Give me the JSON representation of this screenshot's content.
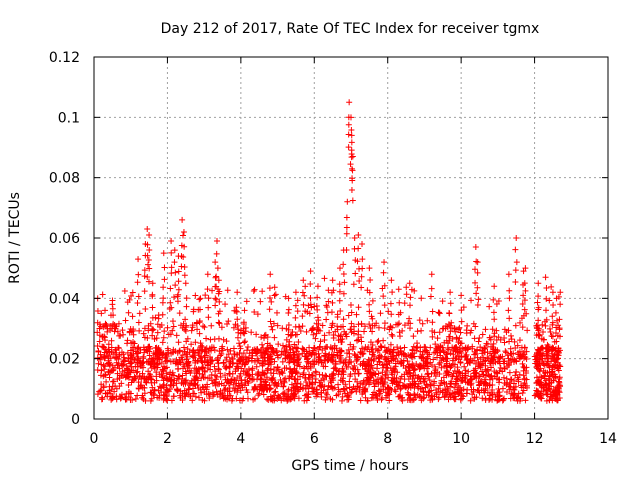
{
  "chart_data": {
    "type": "scatter",
    "title": "Day 212 of 2017, Rate Of TEC Index for receiver tgmx",
    "xlabel": "GPS time / hours",
    "ylabel": "ROTI / TECUs",
    "xlim": [
      0,
      14
    ],
    "ylim": [
      0,
      0.12
    ],
    "x_ticks": [
      0,
      2,
      4,
      6,
      8,
      10,
      12,
      14
    ],
    "x_tick_labels": [
      "0",
      "2",
      "4",
      "6",
      "8",
      "10",
      "12",
      "14"
    ],
    "y_ticks": [
      0,
      0.02,
      0.04,
      0.06,
      0.08,
      0.1,
      0.12
    ],
    "y_tick_labels": [
      "0",
      "0.02",
      "0.04",
      "0.06",
      "0.08",
      "0.1",
      "0.12"
    ],
    "grid": true,
    "marker": "+",
    "color": "#ff0000",
    "series": [
      {
        "name": "ROTI",
        "note": "dense band of points from 0.1 h to 11.8 h and 12.0 h to 12.7 h; baseline ~0.005-0.03 TECU/s with spikes",
        "x": [
          0.1,
          0.15,
          0.2,
          0.3,
          0.5,
          1.05,
          1.2,
          1.4,
          1.45,
          1.5,
          1.6,
          1.9,
          2.1,
          2.2,
          2.3,
          2.4,
          2.45,
          2.5,
          2.9,
          3.1,
          3.3,
          3.35,
          3.4,
          3.9,
          4.1,
          4.8,
          5.3,
          5.5,
          5.7,
          5.9,
          6.1,
          6.5,
          6.7,
          6.8,
          6.9,
          6.95,
          7.0,
          7.02,
          7.05,
          7.1,
          7.2,
          7.3,
          7.5,
          7.9,
          8.1,
          8.3,
          8.6,
          9.2,
          9.7,
          10.0,
          10.4,
          10.45,
          10.9,
          11.3,
          11.5,
          11.7,
          11.75,
          12.1,
          12.3,
          12.5,
          12.6,
          12.7
        ],
        "y": [
          0.04,
          0.03,
          0.035,
          0.036,
          0.038,
          0.034,
          0.053,
          0.058,
          0.063,
          0.061,
          0.045,
          0.055,
          0.059,
          0.056,
          0.054,
          0.066,
          0.062,
          0.045,
          0.04,
          0.048,
          0.052,
          0.059,
          0.046,
          0.042,
          0.036,
          0.048,
          0.04,
          0.042,
          0.046,
          0.049,
          0.044,
          0.046,
          0.05,
          0.056,
          0.072,
          0.105,
          0.1,
          0.094,
          0.087,
          0.06,
          0.061,
          0.058,
          0.05,
          0.052,
          0.046,
          0.043,
          0.045,
          0.048,
          0.042,
          0.041,
          0.057,
          0.052,
          0.044,
          0.048,
          0.06,
          0.049,
          0.05,
          0.045,
          0.047,
          0.042,
          0.04,
          0.042
        ]
      }
    ]
  }
}
